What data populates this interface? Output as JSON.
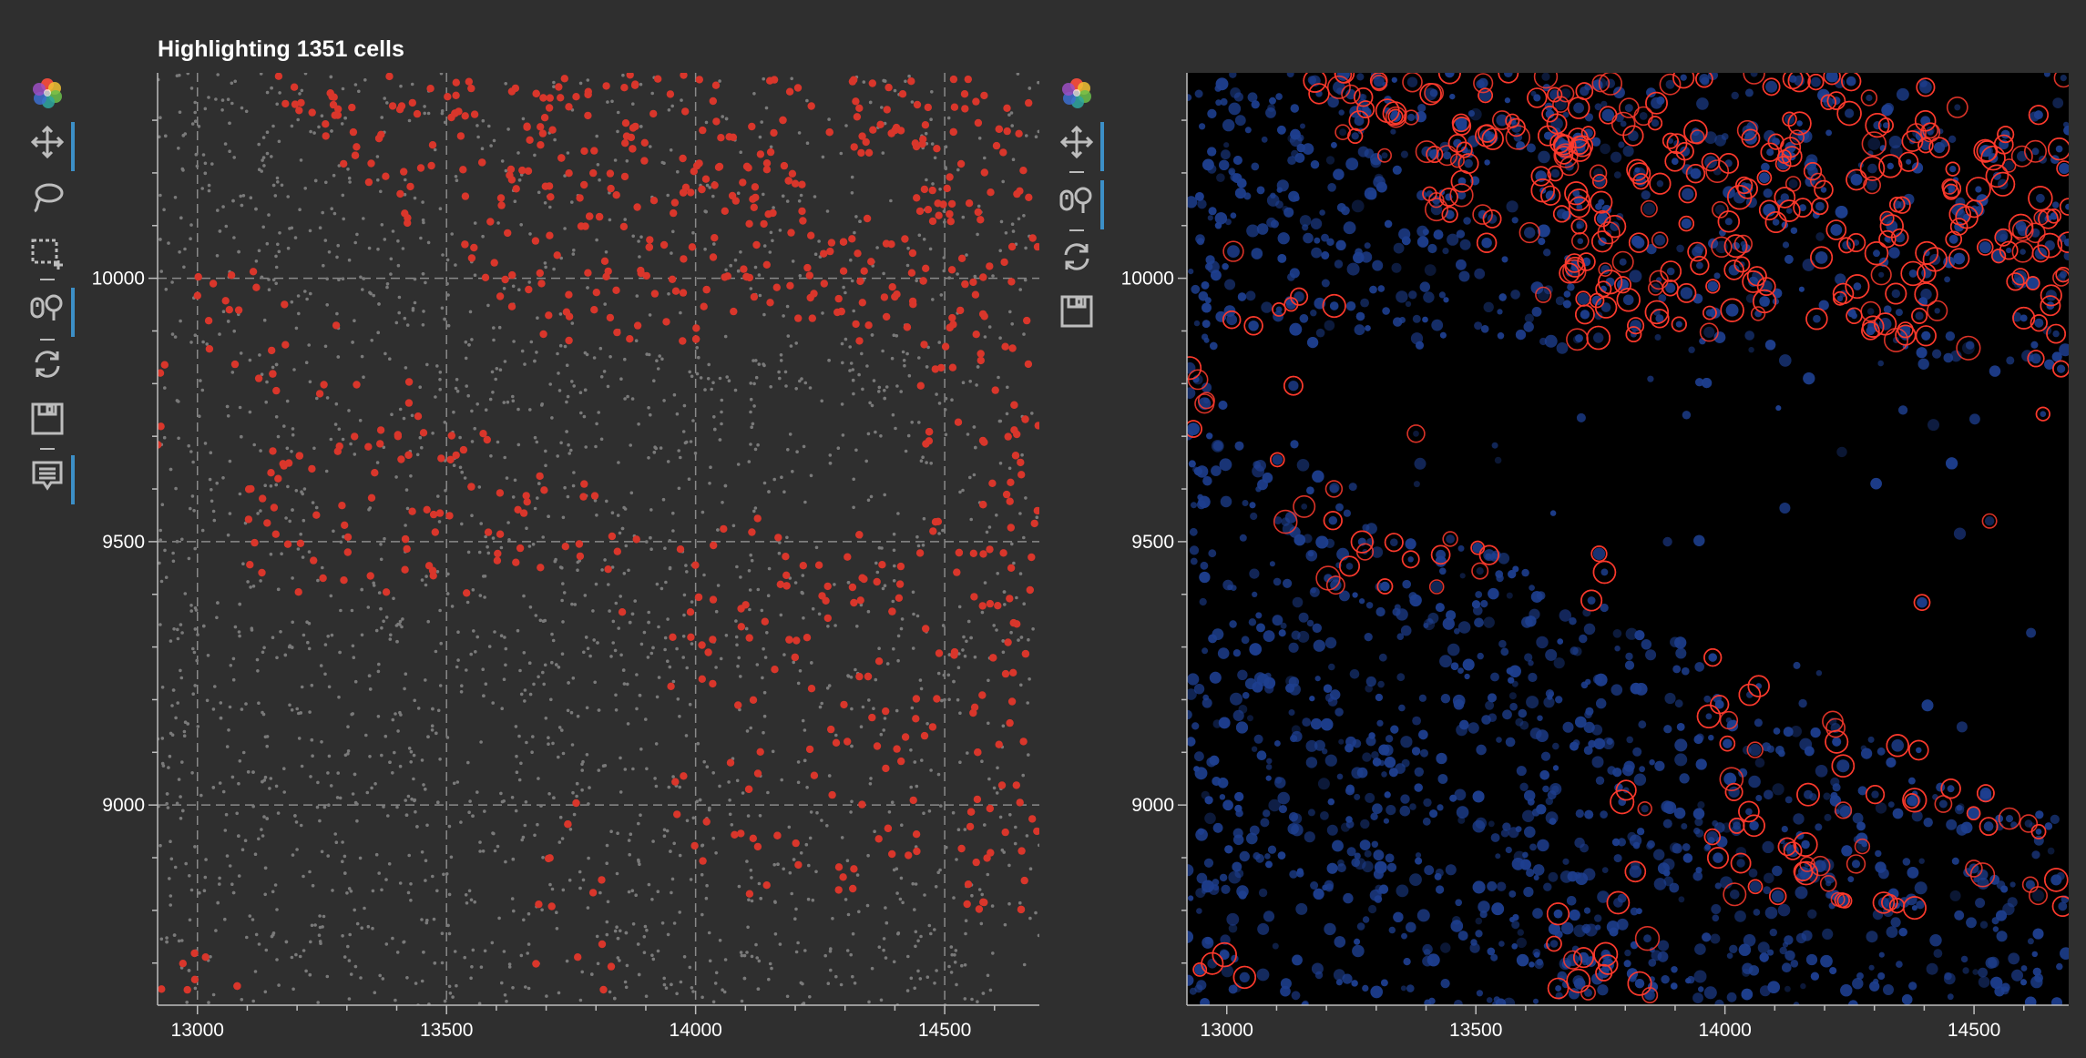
{
  "title": "Highlighting 1351 cells",
  "colors": {
    "background": "#2f2f2f",
    "highlight": "#d9362b",
    "unselected": "#7a7a7a",
    "grid": "#8a8a8a",
    "nucleus": "#1e3f8f",
    "membrane": "#ff3b2e",
    "image_bg": "#000000",
    "active_tool": "#3c8fc7"
  },
  "left_toolbar": [
    {
      "name": "bokeh-logo-icon",
      "active": false
    },
    {
      "name": "pan-icon",
      "active": true
    },
    {
      "name": "lasso-select-icon",
      "active": false
    },
    {
      "name": "box-select-icon",
      "active": false
    },
    {
      "name": "wheel-zoom-icon",
      "active": true
    },
    {
      "name": "reset-icon",
      "active": false
    },
    {
      "name": "save-icon",
      "active": false
    },
    {
      "name": "hover-icon",
      "active": true
    }
  ],
  "right_toolbar": [
    {
      "name": "bokeh-logo-icon",
      "active": false
    },
    {
      "name": "pan-icon",
      "active": true
    },
    {
      "name": "wheel-zoom-icon",
      "active": true
    },
    {
      "name": "reset-icon",
      "active": false
    },
    {
      "name": "save-icon",
      "active": false
    }
  ],
  "axes": {
    "x_ticks": [
      "13000",
      "13500",
      "14000",
      "14500"
    ],
    "y_ticks": [
      "10000",
      "9500",
      "9000"
    ],
    "x_range": [
      12920,
      14690
    ],
    "y_range": [
      8620,
      10390
    ]
  },
  "chart_data": [
    {
      "type": "scatter",
      "title": "Highlighting 1351 cells",
      "highlighted_count": 1351,
      "xlim": [
        12920,
        14690
      ],
      "ylim": [
        8620,
        10390
      ],
      "x_ticks": [
        13000,
        13500,
        14000,
        14500
      ],
      "y_ticks": [
        9000,
        9500,
        10000
      ],
      "grid": true,
      "series": [
        {
          "name": "",
          "color": "#d9362b",
          "count": 1351
        },
        {
          "name": "",
          "color": "#7a7a7a"
        }
      ]
    },
    {
      "type": "heatmap",
      "xlim": [
        12920,
        14690
      ],
      "ylim": [
        8620,
        10390
      ],
      "x_ticks": [
        13000,
        13500,
        14000,
        14500
      ],
      "y_ticks": [
        9000,
        9500,
        10000
      ],
      "grid": false
    }
  ]
}
